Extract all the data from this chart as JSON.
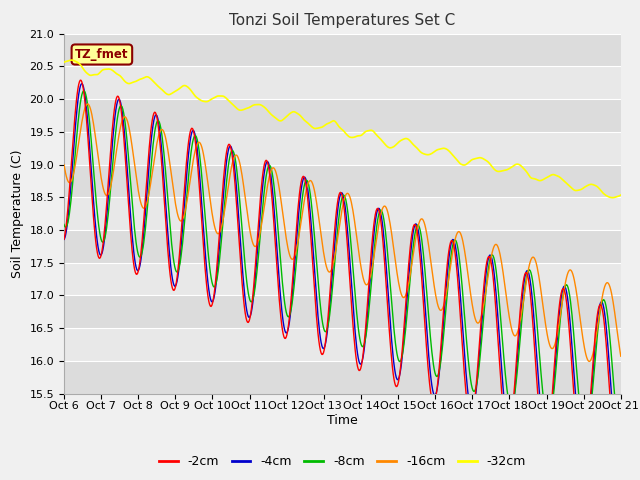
{
  "title": "Tonzi Soil Temperatures Set C",
  "xlabel": "Time",
  "ylabel": "Soil Temperature (C)",
  "ylim": [
    15.5,
    21.0
  ],
  "yticks": [
    15.5,
    16.0,
    16.5,
    17.0,
    17.5,
    18.0,
    18.5,
    19.0,
    19.5,
    20.0,
    20.5,
    21.0
  ],
  "xtick_labels": [
    "Oct 6",
    "Oct 7",
    "Oct 8",
    "Oct 9",
    "Oct 10",
    "Oct 11",
    "Oct 12",
    "Oct 13",
    "Oct 14",
    "Oct 15",
    "Oct 16",
    "Oct 17",
    "Oct 18",
    "Oct 19",
    "Oct 20",
    "Oct 21"
  ],
  "series": {
    "-2cm": {
      "color": "#ff0000",
      "linewidth": 1.0
    },
    "-4cm": {
      "color": "#0000cc",
      "linewidth": 1.0
    },
    "-8cm": {
      "color": "#00bb00",
      "linewidth": 1.0
    },
    "-16cm": {
      "color": "#ff8800",
      "linewidth": 1.0
    },
    "-32cm": {
      "color": "#ffff00",
      "linewidth": 1.2
    }
  },
  "legend_labels": [
    "-2cm",
    "-4cm",
    "-8cm",
    "-16cm",
    "-32cm"
  ],
  "legend_colors": [
    "#ff0000",
    "#0000cc",
    "#00bb00",
    "#ff8800",
    "#ffff00"
  ],
  "annotation_text": "TZ_fmet",
  "annotation_color": "#8b0000",
  "annotation_bg": "#ffff99",
  "band_color_dark": "#dcdcdc",
  "band_color_light": "#ebebeb",
  "title_fontsize": 11,
  "label_fontsize": 9,
  "tick_fontsize": 8
}
